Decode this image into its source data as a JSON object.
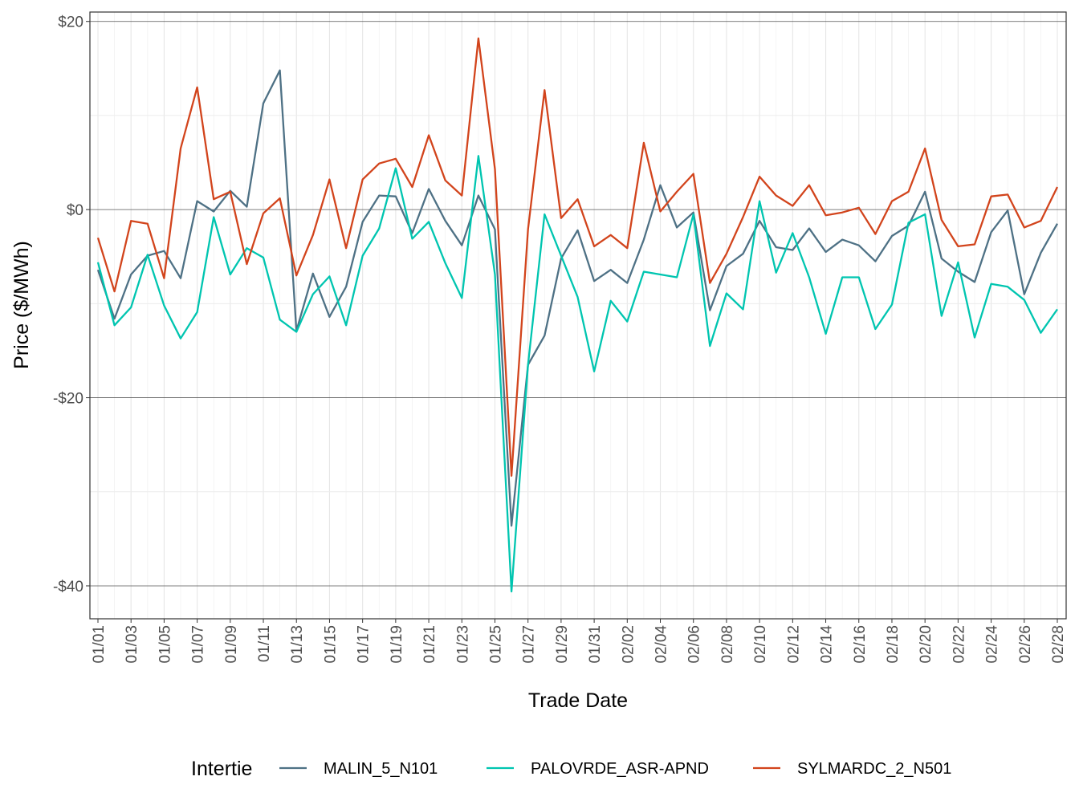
{
  "chart_data": {
    "type": "line",
    "title": "",
    "xlabel": "Trade Date",
    "ylabel": "Price ($/MWh)",
    "ylim": [
      -43.5,
      21
    ],
    "y_ticks": [
      20,
      0,
      -20,
      -40
    ],
    "y_tick_labels": [
      "$20",
      "$0",
      "-$20",
      "-$40"
    ],
    "grid": true,
    "legend": {
      "title": "Intertie",
      "placement": "bottom"
    },
    "x": [
      "01/01",
      "01/02",
      "01/03",
      "01/04",
      "01/05",
      "01/06",
      "01/07",
      "01/08",
      "01/09",
      "01/10",
      "01/11",
      "01/12",
      "01/13",
      "01/14",
      "01/15",
      "01/16",
      "01/17",
      "01/18",
      "01/19",
      "01/20",
      "01/21",
      "01/22",
      "01/23",
      "01/24",
      "01/25",
      "01/26",
      "01/27",
      "01/28",
      "01/29",
      "01/30",
      "01/31",
      "02/01",
      "02/02",
      "02/03",
      "02/04",
      "02/05",
      "02/06",
      "02/07",
      "02/08",
      "02/09",
      "02/10",
      "02/11",
      "02/12",
      "02/13",
      "02/14",
      "02/15",
      "02/16",
      "02/17",
      "02/18",
      "02/19",
      "02/20",
      "02/21",
      "02/22",
      "02/23",
      "02/24",
      "02/25",
      "02/26",
      "02/27",
      "02/28"
    ],
    "x_tick_labels": [
      "01/01",
      "01/03",
      "01/05",
      "01/07",
      "01/09",
      "01/11",
      "01/13",
      "01/15",
      "01/17",
      "01/19",
      "01/21",
      "01/23",
      "01/25",
      "01/27",
      "01/29",
      "01/31",
      "02/02",
      "02/04",
      "02/06",
      "02/08",
      "02/10",
      "02/12",
      "02/14",
      "02/16",
      "02/18",
      "02/20",
      "02/22",
      "02/24",
      "02/26",
      "02/28"
    ],
    "series": [
      {
        "name": "MALIN_5_N101",
        "color": "#4e7185",
        "values": [
          -6.4,
          -11.6,
          -6.9,
          -4.9,
          -4.4,
          -7.3,
          0.9,
          -0.2,
          2.0,
          0.3,
          11.3,
          14.8,
          -12.9,
          -6.8,
          -11.4,
          -8.2,
          -1.3,
          1.5,
          1.4,
          -2.5,
          2.2,
          -1.2,
          -3.8,
          1.5,
          -2.1,
          -33.6,
          -16.5,
          -13.4,
          -5.2,
          -2.2,
          -7.6,
          -6.4,
          -7.8,
          -3.2,
          2.6,
          -1.9,
          -0.3,
          -10.7,
          -6.0,
          -4.7,
          -1.2,
          -4.0,
          -4.3,
          -2.0,
          -4.5,
          -3.2,
          -3.8,
          -5.5,
          -2.8,
          -1.7,
          1.9,
          -5.2,
          -6.6,
          -7.7,
          -2.4,
          -0.1,
          -9.0,
          -4.6,
          -1.5
        ]
      },
      {
        "name": "PALOVRDE_ASR-APND",
        "color": "#00c5b0",
        "values": [
          -5.6,
          -12.3,
          -10.4,
          -4.8,
          -10.2,
          -13.7,
          -10.9,
          -0.8,
          -6.9,
          -4.1,
          -5.1,
          -11.7,
          -13.0,
          -9.0,
          -7.1,
          -12.3,
          -4.9,
          -2.0,
          4.4,
          -3.1,
          -1.3,
          -5.7,
          -9.4,
          5.7,
          -6.9,
          -40.6,
          -16.5,
          -0.5,
          -4.9,
          -9.3,
          -17.2,
          -9.7,
          -11.9,
          -6.6,
          -6.9,
          -7.2,
          -0.5,
          -14.5,
          -8.9,
          -10.6,
          0.9,
          -6.7,
          -2.5,
          -7.2,
          -13.2,
          -7.2,
          -7.2,
          -12.7,
          -10.1,
          -1.4,
          -0.5,
          -11.3,
          -5.6,
          -13.6,
          -7.9,
          -8.2,
          -9.6,
          -13.1,
          -10.6
        ]
      },
      {
        "name": "SYLMARDC_2_N501",
        "color": "#d2441c",
        "values": [
          -3.0,
          -8.7,
          -1.2,
          -1.5,
          -7.3,
          6.5,
          13.0,
          1.1,
          1.9,
          -5.8,
          -0.4,
          1.2,
          -7.0,
          -2.7,
          3.2,
          -4.1,
          3.2,
          4.9,
          5.4,
          2.4,
          7.9,
          3.1,
          1.5,
          18.2,
          4.3,
          -28.3,
          -2.1,
          12.7,
          -0.9,
          1.1,
          -3.9,
          -2.7,
          -4.1,
          7.1,
          -0.2,
          1.9,
          3.8,
          -7.8,
          -4.7,
          -0.8,
          3.5,
          1.5,
          0.4,
          2.6,
          -0.6,
          -0.3,
          0.2,
          -2.6,
          0.9,
          1.9,
          6.5,
          -1.1,
          -3.9,
          -3.7,
          1.4,
          1.6,
          -1.9,
          -1.2,
          2.4
        ]
      }
    ]
  }
}
